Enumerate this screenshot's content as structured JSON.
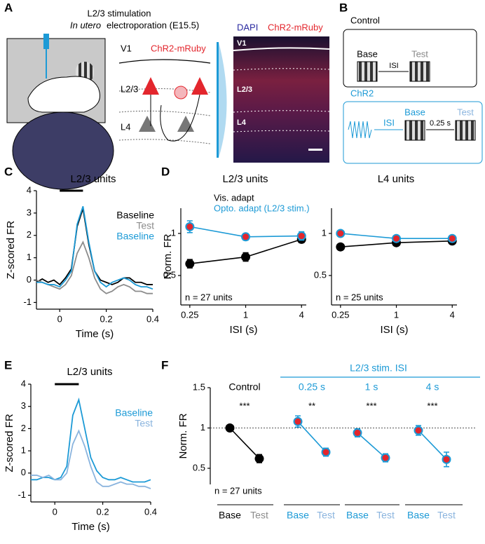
{
  "panel_labels": [
    "A",
    "B",
    "C",
    "D",
    "E",
    "F"
  ],
  "diagram_a": {
    "title": "L2/3 stimulation",
    "subtitle_italic": "In utero",
    "subtitle": "electroporation (E15.5)",
    "circuit_labels": [
      "V1",
      "ChR2-mRuby",
      "L2/3",
      "L4"
    ],
    "image_channels": [
      "DAPI",
      "ChR2-mRuby"
    ],
    "image_layers": [
      "V1",
      "L2/3",
      "L4"
    ]
  },
  "diagram_b": {
    "control": {
      "title": "Control",
      "base": "Base",
      "isi": "ISI",
      "test": "Test"
    },
    "chr2": {
      "title": "ChR2",
      "isi": "ISI",
      "base": "Base",
      "interval": "0.25 s",
      "test": "Test"
    }
  },
  "chart_data": [
    {
      "type": "line",
      "title": "L2/3 units",
      "x_label": "Time (s)",
      "y_label": "Z-scored FR",
      "x": [
        -0.1,
        -0.075,
        -0.05,
        -0.025,
        0,
        0.025,
        0.05,
        0.075,
        0.1,
        0.125,
        0.15,
        0.175,
        0.2,
        0.225,
        0.25,
        0.275,
        0.3,
        0.325,
        0.35,
        0.375,
        0.4
      ],
      "series": [
        {
          "name": "Baseline",
          "color": "#000000",
          "values": [
            -0.1,
            0.05,
            -0.1,
            0,
            -0.2,
            0.1,
            0.5,
            2.4,
            3.2,
            1.6,
            0.4,
            0,
            -0.1,
            -0.2,
            -0.1,
            0.1,
            0.1,
            -0.1,
            -0.1,
            -0.2,
            -0.2
          ]
        },
        {
          "name": "Test",
          "color": "#8c8c8c",
          "values": [
            0,
            -0.1,
            -0.2,
            -0.3,
            -0.4,
            -0.2,
            0.2,
            1.2,
            1.7,
            1.0,
            0.1,
            -0.4,
            -0.6,
            -0.5,
            -0.3,
            -0.2,
            -0.3,
            -0.5,
            -0.5,
            -0.6,
            -0.6
          ]
        },
        {
          "name": "Baseline",
          "color": "#1c9ad6",
          "values": [
            -0.1,
            -0.1,
            -0.2,
            -0.2,
            -0.3,
            0,
            0.4,
            2.5,
            3.3,
            1.7,
            0.4,
            -0.1,
            -0.3,
            -0.1,
            0,
            0.1,
            0,
            -0.2,
            -0.3,
            -0.3,
            -0.4
          ]
        }
      ],
      "xlim": [
        -0.1,
        0.4
      ],
      "xticks": [
        0,
        0.2,
        0.4
      ],
      "ylim": [
        -1.3,
        4
      ],
      "yticks": [
        -1,
        0,
        1,
        2,
        3,
        4
      ],
      "stimulus": [
        0,
        0.1
      ]
    },
    {
      "type": "errorbar",
      "title": "L2/3 units",
      "x_label": "ISI (s)",
      "y_label": "Norm. FR",
      "annotation": "n = 27 units",
      "x": [
        0.25,
        1,
        4
      ],
      "xscale": "log",
      "xlim": [
        0.2,
        4.5
      ],
      "xticks": [
        0.25,
        1,
        4
      ],
      "ylim": [
        0.15,
        1.3
      ],
      "yticks": [
        0.5,
        1
      ],
      "legend": true,
      "series": [
        {
          "name": "Vis. adapt",
          "color": "#000000",
          "marker_fill": "#000000",
          "values": [
            0.64,
            0.72,
            0.93
          ],
          "errors": [
            0.05,
            0.05,
            0.04
          ]
        },
        {
          "name": "Opto. adapt (L2/3 stim.)",
          "color": "#1c9ad6",
          "marker_fill": "#e3262d",
          "values": [
            1.08,
            0.96,
            0.97
          ],
          "errors": [
            0.07,
            0.04,
            0.05
          ]
        }
      ]
    },
    {
      "type": "errorbar",
      "title": "L4 units",
      "x_label": "ISI (s)",
      "annotation": "n = 25 units",
      "x": [
        0.25,
        1,
        4
      ],
      "xscale": "log",
      "xlim": [
        0.2,
        4.5
      ],
      "xticks": [
        0.25,
        1,
        4
      ],
      "ylim": [
        0.15,
        1.3
      ],
      "yticks": [
        0.5,
        1
      ],
      "legend": false,
      "series": [
        {
          "color": "#000000",
          "marker_fill": "#000000",
          "values": [
            0.84,
            0.89,
            0.91
          ],
          "errors": [
            0.03,
            0.03,
            0.02
          ]
        },
        {
          "color": "#1c9ad6",
          "marker_fill": "#e3262d",
          "values": [
            1.0,
            0.94,
            0.94
          ],
          "errors": [
            0.02,
            0.02,
            0.02
          ]
        }
      ]
    },
    {
      "type": "line",
      "title": "L2/3 units",
      "x_label": "Time (s)",
      "y_label": "Z-scored FR",
      "x": [
        -0.1,
        -0.075,
        -0.05,
        -0.025,
        0,
        0.025,
        0.05,
        0.075,
        0.1,
        0.125,
        0.15,
        0.175,
        0.2,
        0.225,
        0.25,
        0.275,
        0.3,
        0.325,
        0.35,
        0.375,
        0.4
      ],
      "series": [
        {
          "name": "Baseline",
          "color": "#1c9ad6",
          "values": [
            -0.3,
            -0.3,
            -0.2,
            -0.2,
            -0.3,
            -0.2,
            0.3,
            2.6,
            3.3,
            2.0,
            0.7,
            0.1,
            -0.2,
            -0.3,
            -0.3,
            -0.2,
            -0.3,
            -0.4,
            -0.4,
            -0.4,
            -0.3
          ]
        },
        {
          "name": "Test",
          "color": "#8ab4de",
          "values": [
            -0.1,
            -0.1,
            -0.2,
            -0.1,
            -0.3,
            -0.3,
            0,
            1.3,
            1.9,
            1.2,
            0.3,
            -0.4,
            -0.6,
            -0.6,
            -0.5,
            -0.4,
            -0.5,
            -0.5,
            -0.6,
            -0.6,
            -0.7
          ]
        }
      ],
      "xlim": [
        -0.1,
        0.4
      ],
      "xticks": [
        0,
        0.2,
        0.4
      ],
      "ylim": [
        -1.3,
        4
      ],
      "yticks": [
        -1,
        0,
        1,
        2,
        3,
        4
      ],
      "stimulus": [
        0,
        0.1
      ]
    },
    {
      "type": "paired",
      "y_label": "Norm. FR",
      "annotation": "n = 27 units",
      "header": "L2/3 stim. ISI",
      "reference": 1,
      "ylim": [
        0.3,
        1.5
      ],
      "yticks": [
        0.5,
        1,
        1.5
      ],
      "groups": [
        {
          "label": "Control",
          "color": "#000000",
          "marker_fill": "#000000",
          "categories": [
            "Base",
            "Test"
          ],
          "category_colors": [
            "#000000",
            "#8c8c8c"
          ],
          "values": [
            1.0,
            0.62
          ],
          "errors": [
            0.01,
            0.05
          ],
          "significance": "***"
        },
        {
          "label": "0.25 s",
          "color": "#1c9ad6",
          "marker_fill": "#e3262d",
          "categories": [
            "Base",
            "Test"
          ],
          "category_colors": [
            "#1c9ad6",
            "#8ab4de"
          ],
          "values": [
            1.08,
            0.7
          ],
          "errors": [
            0.07,
            0.05
          ],
          "significance": "**"
        },
        {
          "label": "1 s",
          "color": "#1c9ad6",
          "marker_fill": "#e3262d",
          "categories": [
            "Base",
            "Test"
          ],
          "category_colors": [
            "#1c9ad6",
            "#8ab4de"
          ],
          "values": [
            0.94,
            0.63
          ],
          "errors": [
            0.05,
            0.05
          ],
          "significance": "***"
        },
        {
          "label": "4 s",
          "color": "#1c9ad6",
          "marker_fill": "#e3262d",
          "categories": [
            "Base",
            "Test"
          ],
          "category_colors": [
            "#1c9ad6",
            "#8ab4de"
          ],
          "values": [
            0.97,
            0.61
          ],
          "errors": [
            0.06,
            0.09
          ],
          "significance": "***"
        }
      ]
    }
  ]
}
